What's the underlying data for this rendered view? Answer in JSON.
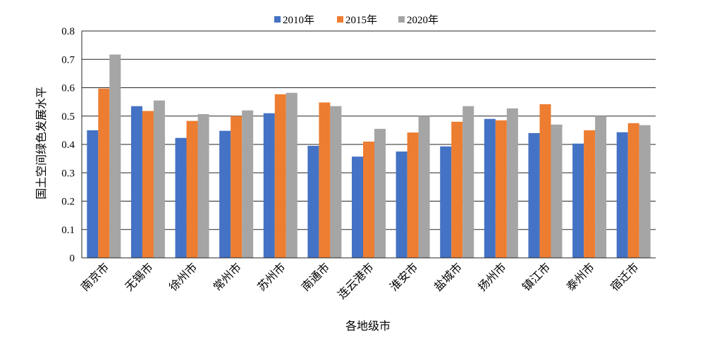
{
  "chart_data": {
    "type": "bar",
    "title": "",
    "xlabel": "各地级市",
    "ylabel": "国土空间绿色发展水平",
    "ylim": [
      0,
      0.8
    ],
    "yticks": [
      "0",
      "0.1",
      "0.2",
      "0.3",
      "0.4",
      "0.5",
      "0.6",
      "0.7",
      "0.8"
    ],
    "grid": true,
    "legend_position": "top",
    "categories": [
      "南京市",
      "无锡市",
      "徐州市",
      "常州市",
      "苏州市",
      "南通市",
      "连云港市",
      "淮安市",
      "盐城市",
      "扬州市",
      "镇江市",
      "泰州市",
      "宿迁市"
    ],
    "series": [
      {
        "name": "2010年",
        "color": "#4472C4",
        "values": [
          0.45,
          0.535,
          0.423,
          0.448,
          0.51,
          0.395,
          0.357,
          0.375,
          0.393,
          0.49,
          0.44,
          0.403,
          0.443
        ]
      },
      {
        "name": "2015年",
        "color": "#ED7D31",
        "values": [
          0.597,
          0.518,
          0.483,
          0.5,
          0.577,
          0.548,
          0.41,
          0.442,
          0.48,
          0.485,
          0.542,
          0.45,
          0.475
        ]
      },
      {
        "name": "2020年",
        "color": "#A5A5A5",
        "values": [
          0.717,
          0.555,
          0.507,
          0.52,
          0.582,
          0.535,
          0.455,
          0.5,
          0.535,
          0.527,
          0.47,
          0.5,
          0.468
        ]
      }
    ]
  }
}
